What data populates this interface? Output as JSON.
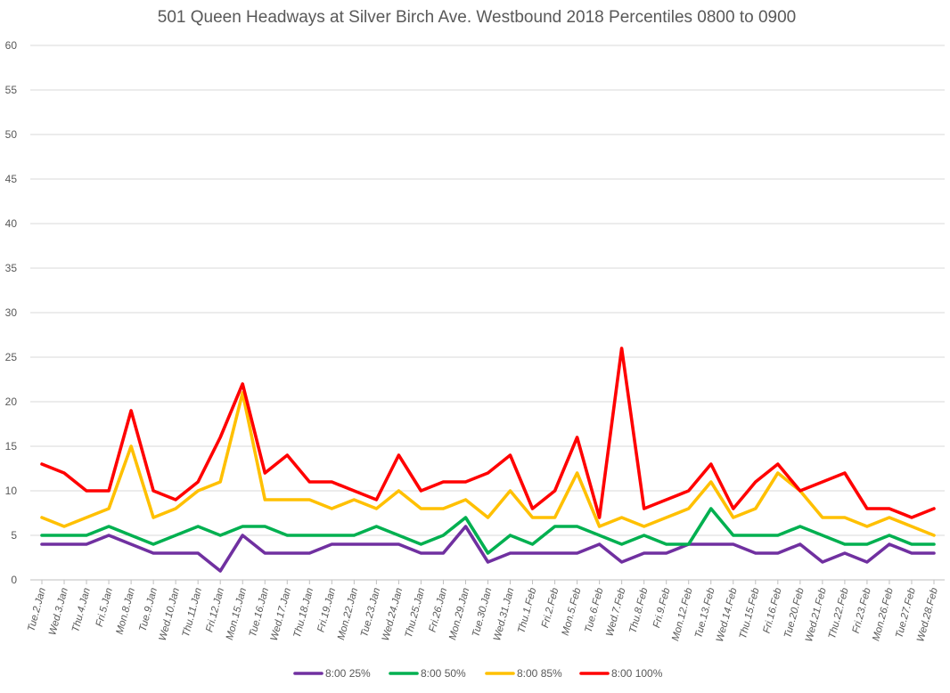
{
  "chart_data": {
    "type": "line",
    "title": "501 Queen Headways at Silver Birch Ave. Westbound 2018 Percentiles 0800 to 0900",
    "xlabel": "",
    "ylabel": "",
    "ylim": [
      0,
      60
    ],
    "yticks": [
      "0",
      "5",
      "10",
      "15",
      "20",
      "25",
      "30",
      "35",
      "40",
      "45",
      "50",
      "55",
      "60"
    ],
    "grid": true,
    "legend_position": "bottom",
    "categories": [
      "Tue.2.Jan",
      "Wed.3.Jan",
      "Thu.4.Jan",
      "Fri.5.Jan",
      "Mon.8.Jan",
      "Tue.9.Jan",
      "Wed.10.Jan",
      "Thu.11.Jan",
      "Fri.12.Jan",
      "Mon.15.Jan",
      "Tue.16.Jan",
      "Wed.17.Jan",
      "Thu.18.Jan",
      "Fri.19.Jan",
      "Mon.22.Jan",
      "Tue.23.Jan",
      "Wed.24.Jan",
      "Thu.25.Jan",
      "Fri.26.Jan",
      "Mon.29.Jan",
      "Tue.30.Jan",
      "Wed.31.Jan",
      "Thu.1.Feb",
      "Fri.2.Feb",
      "Mon.5.Feb",
      "Tue.6.Feb",
      "Wed.7.Feb",
      "Thu.8.Feb",
      "Fri.9.Feb",
      "Mon.12.Feb",
      "Tue.13.Feb",
      "Wed.14.Feb",
      "Thu.15.Feb",
      "Fri.16.Feb",
      "Tue.20.Feb",
      "Wed.21.Feb",
      "Thu.22.Feb",
      "Fri.23.Feb",
      "Mon.26.Feb",
      "Tue.27.Feb",
      "Wed.28.Feb"
    ],
    "series": [
      {
        "name": "8:00 25%",
        "color": "#7030a0",
        "values": [
          4,
          4,
          4,
          5,
          4,
          3,
          3,
          3,
          1,
          5,
          3,
          3,
          3,
          4,
          4,
          4,
          4,
          3,
          3,
          6,
          2,
          3,
          3,
          3,
          3,
          4,
          2,
          3,
          3,
          4,
          4,
          4,
          3,
          3,
          4,
          2,
          3,
          2,
          4,
          3,
          3
        ]
      },
      {
        "name": "8:00 50%",
        "color": "#00b050",
        "values": [
          5,
          5,
          5,
          6,
          5,
          4,
          5,
          6,
          5,
          6,
          6,
          5,
          5,
          5,
          5,
          6,
          5,
          4,
          5,
          7,
          3,
          5,
          4,
          6,
          6,
          5,
          4,
          5,
          4,
          4,
          8,
          5,
          5,
          5,
          6,
          5,
          4,
          4,
          5,
          4,
          4
        ]
      },
      {
        "name": "8:00 85%",
        "color": "#ffc000",
        "values": [
          7,
          6,
          7,
          8,
          15,
          7,
          8,
          10,
          11,
          21,
          9,
          9,
          9,
          8,
          9,
          8,
          10,
          8,
          8,
          9,
          7,
          10,
          7,
          7,
          12,
          6,
          7,
          6,
          7,
          8,
          11,
          7,
          8,
          12,
          10,
          7,
          7,
          6,
          7,
          6,
          5
        ]
      },
      {
        "name": "8:00 100%",
        "color": "#ff0000",
        "values": [
          13,
          12,
          10,
          10,
          19,
          10,
          9,
          11,
          16,
          22,
          12,
          14,
          11,
          11,
          10,
          9,
          14,
          10,
          11,
          11,
          12,
          14,
          8,
          10,
          16,
          7,
          26,
          8,
          9,
          10,
          13,
          8,
          11,
          13,
          10,
          11,
          12,
          8,
          8,
          7,
          8
        ]
      }
    ]
  }
}
